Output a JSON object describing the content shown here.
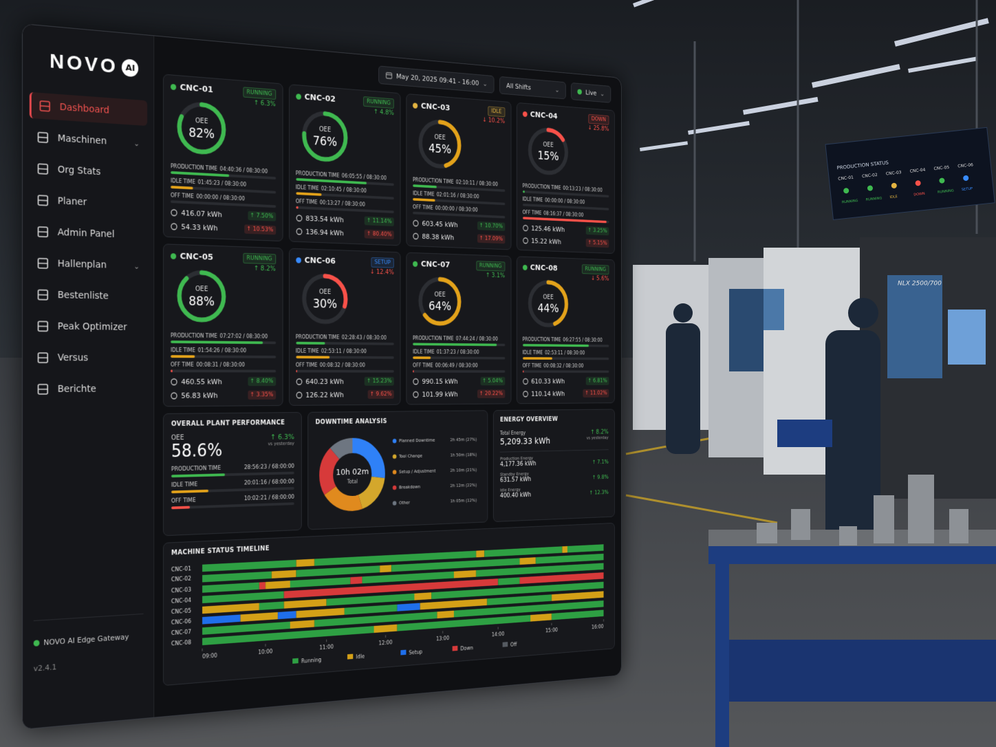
{
  "brand": {
    "name": "NOVO",
    "badge": "AI"
  },
  "nav": [
    {
      "label": "Dashboard",
      "active": true
    },
    {
      "label": "Maschinen",
      "expandable": true
    },
    {
      "label": "Org Stats"
    },
    {
      "label": "Planer"
    },
    {
      "label": "Admin Panel"
    },
    {
      "label": "Hallenplan",
      "expandable": true
    },
    {
      "label": "Bestenliste"
    },
    {
      "label": "Peak Optimizer"
    },
    {
      "label": "Versus"
    },
    {
      "label": "Berichte"
    }
  ],
  "footer": {
    "gateway": "NOVO AI Edge Gateway",
    "version": "v2.4.1"
  },
  "toolbar": {
    "date": "May 20, 2025 09:41 - 16:00",
    "shifts": "All Shifts",
    "live": "Live"
  },
  "status_colors": {
    "RUNNING": "#3fb950",
    "IDLE": "#e3b341",
    "DOWN": "#f85149",
    "SETUP": "#388bfd"
  },
  "oee_label": "OEE",
  "machines": [
    {
      "name": "CNC-01",
      "status": "RUNNING",
      "delta": "↑ 6.3%",
      "oee": {
        "value": 82,
        "label": "82%"
      },
      "rows": [
        {
          "label": "PRODUCTION TIME",
          "value": "04:40:36 / 08:30:00"
        },
        {
          "label": "IDLE TIME",
          "value": "01:45:23 / 08:30:00"
        },
        {
          "label": "OFF TIME",
          "value": "00:00:00 / 08:30:00"
        }
      ],
      "energy": [
        {
          "value": "416.07 kWh",
          "delta": "↑ 7.50%"
        },
        {
          "value": "54.33 kWh",
          "delta": "↑ 10.53%"
        }
      ]
    },
    {
      "name": "CNC-02",
      "status": "RUNNING",
      "delta": "↑ 4.8%",
      "oee": {
        "value": 76,
        "label": "76%"
      },
      "rows": [
        {
          "label": "PRODUCTION TIME",
          "value": "06:05:55 / 08:30:00"
        },
        {
          "label": "IDLE TIME",
          "value": "02:10:45 / 08:30:00"
        },
        {
          "label": "OFF TIME",
          "value": "00:13:27 / 08:30:00"
        }
      ],
      "energy": [
        {
          "value": "833.54 kWh",
          "delta": "↑ 11.14%"
        },
        {
          "value": "136.94 kWh",
          "delta": "↑ 80.40%"
        }
      ]
    },
    {
      "name": "CNC-03",
      "status": "IDLE",
      "delta": "↓ 10.2%",
      "oee": {
        "value": 45,
        "label": "45%"
      },
      "rows": [
        {
          "label": "PRODUCTION TIME",
          "value": "02:10:11 / 08:30:00"
        },
        {
          "label": "IDLE TIME",
          "value": "02:01:16 / 08:30:00"
        },
        {
          "label": "OFF TIME",
          "value": "00:00:00 / 08:30:00"
        }
      ],
      "energy": [
        {
          "value": "603.45 kWh",
          "delta": "↑ 10.70%"
        },
        {
          "value": "88.38 kWh",
          "delta": "↑ 17.09%"
        }
      ]
    },
    {
      "name": "CNC-04",
      "status": "DOWN",
      "delta": "↓ 25.8%",
      "oee": {
        "value": 15,
        "label": "15%"
      },
      "rows": [
        {
          "label": "PRODUCTION TIME",
          "value": "00:13:23 / 08:30:00"
        },
        {
          "label": "IDLE TIME",
          "value": "00:00:00 / 08:30:00"
        },
        {
          "label": "OFF TIME",
          "value": "08:16:37 / 08:30:00"
        }
      ],
      "energy": [
        {
          "value": "125.46 kWh",
          "delta": "↑ 3.25%"
        },
        {
          "value": "15.22 kWh",
          "delta": "↑ 5.15%"
        }
      ]
    },
    {
      "name": "CNC-05",
      "status": "RUNNING",
      "delta": "↑ 8.2%",
      "oee": {
        "value": 88,
        "label": "88%"
      },
      "rows": [
        {
          "label": "PRODUCTION TIME",
          "value": "07:27:02 / 08:30:00"
        },
        {
          "label": "IDLE TIME",
          "value": "01:54:26 / 08:30:00"
        },
        {
          "label": "OFF TIME",
          "value": "00:08:31 / 08:30:00"
        }
      ],
      "energy": [
        {
          "value": "460.55 kWh",
          "delta": "↑ 8.40%"
        },
        {
          "value": "56.83 kWh",
          "delta": "↑ 3.35%"
        }
      ]
    },
    {
      "name": "CNC-06",
      "status": "SETUP",
      "delta": "↓ 12.4%",
      "oee": {
        "value": 30,
        "label": "30%"
      },
      "rows": [
        {
          "label": "PRODUCTION TIME",
          "value": "02:28:43 / 08:30:00"
        },
        {
          "label": "IDLE TIME",
          "value": "02:53:11 / 08:30:00"
        },
        {
          "label": "OFF TIME",
          "value": "00:08:32 / 08:30:00"
        }
      ],
      "energy": [
        {
          "value": "640.23 kWh",
          "delta": "↑ 15.23%"
        },
        {
          "value": "126.22 kWh",
          "delta": "↑ 9.62%"
        }
      ]
    },
    {
      "name": "CNC-07",
      "status": "RUNNING",
      "delta": "↑ 3.1%",
      "oee": {
        "value": 64,
        "label": "64%"
      },
      "rows": [
        {
          "label": "PRODUCTION TIME",
          "value": "07:44:24 / 08:30:00"
        },
        {
          "label": "IDLE TIME",
          "value": "01:37:23 / 08:30:00"
        },
        {
          "label": "OFF TIME",
          "value": "00:06:49 / 08:30:00"
        }
      ],
      "energy": [
        {
          "value": "990.15 kWh",
          "delta": "↑ 5.04%"
        },
        {
          "value": "101.99 kWh",
          "delta": "↑ 20.22%"
        }
      ]
    },
    {
      "name": "CNC-08",
      "status": "RUNNING",
      "delta": "↓ 5.6%",
      "oee": {
        "value": 44,
        "label": "44%"
      },
      "rows": [
        {
          "label": "PRODUCTION TIME",
          "value": "06:27:55 / 08:30:00"
        },
        {
          "label": "IDLE TIME",
          "value": "02:53:11 / 08:30:00"
        },
        {
          "label": "OFF TIME",
          "value": "00:08:32 / 08:30:00"
        }
      ],
      "energy": [
        {
          "value": "610.33 kWh",
          "delta": "↑ 6.81%"
        },
        {
          "value": "110.14 kWh",
          "delta": "↑ 11.02%"
        }
      ]
    }
  ],
  "plant": {
    "title": "OVERALL PLANT PERFORMANCE",
    "oee_label": "OEE",
    "oee": "58.6%",
    "delta": "↑ 6.3%",
    "compare": "vs yesterday",
    "rows": [
      {
        "label": "PRODUCTION TIME",
        "value": "28:56:23 / 68:00:00"
      },
      {
        "label": "IDLE TIME",
        "value": "20:01:16 / 68:00:00"
      },
      {
        "label": "OFF TIME",
        "value": "10:02:21 / 68:00:00"
      }
    ]
  },
  "downtime": {
    "title": "DOWNTIME ANALYSIS",
    "total": "10h 02m",
    "total_label": "Total",
    "items": [
      {
        "name": "Planned Downtime",
        "color": "#2f81f7",
        "share": {
          "value": 27,
          "label": "2h 45m (27%)"
        }
      },
      {
        "name": "Tool Change",
        "color": "#d4a72c",
        "share": {
          "value": 18,
          "label": "1h 50m (18%)"
        }
      },
      {
        "name": "Setup / Adjustment",
        "color": "#e08a1e",
        "share": {
          "value": 21,
          "label": "2h 10m (21%)"
        }
      },
      {
        "name": "Breakdown",
        "color": "#d73a3a",
        "share": {
          "value": 22,
          "label": "2h 12m (22%)"
        }
      },
      {
        "name": "Other",
        "color": "#6e7681",
        "share": {
          "value": 12,
          "label": "1h 05m (12%)"
        }
      }
    ]
  },
  "energy": {
    "title": "ENERGY OVERVIEW",
    "total_label": "Total Energy",
    "total": "5,209.33 kWh",
    "delta": "↑ 8.2%",
    "compare": "vs yesterday",
    "rows": [
      {
        "label": "Production Energy",
        "value": "4,177.36 kWh",
        "delta": "↑ 7.1%"
      },
      {
        "label": "Standby Energy",
        "value": "631.57 kWh",
        "delta": "↑ 9.8%"
      },
      {
        "label": "Idle Energy",
        "value": "400.40 kWh",
        "delta": "↑ 12.3%"
      }
    ]
  },
  "timeline": {
    "title": "MACHINE STATUS TIMELINE",
    "xlim": [
      9,
      16
    ],
    "xticks": [
      {
        "value": 9,
        "label": "09:00"
      },
      {
        "value": 10,
        "label": "10:00"
      },
      {
        "value": 11,
        "label": "11:00"
      },
      {
        "value": 12,
        "label": "12:00"
      },
      {
        "value": 13,
        "label": "13:00"
      },
      {
        "value": 14,
        "label": "14:00"
      },
      {
        "value": 15,
        "label": "15:00"
      },
      {
        "value": 16,
        "label": "16:00"
      }
    ],
    "states": [
      {
        "name": "Running",
        "color": "#2ea043"
      },
      {
        "name": "Idle",
        "color": "#d4a017"
      },
      {
        "name": "Setup",
        "color": "#1f6feb"
      },
      {
        "name": "Down",
        "color": "#d73a3a"
      },
      {
        "name": "Off",
        "color": "#555a61"
      }
    ],
    "rows": [
      {
        "name": "CNC-01",
        "segments": [
          [
            9,
            10.5,
            "Running"
          ],
          [
            10.5,
            10.8,
            "Idle"
          ],
          [
            10.8,
            13.6,
            "Running"
          ],
          [
            13.6,
            13.75,
            "Idle"
          ],
          [
            13.75,
            15.2,
            "Running"
          ],
          [
            15.2,
            15.3,
            "Idle"
          ],
          [
            15.3,
            16,
            "Running"
          ]
        ]
      },
      {
        "name": "CNC-02",
        "segments": [
          [
            9,
            10.1,
            "Running"
          ],
          [
            10.1,
            10.5,
            "Idle"
          ],
          [
            10.5,
            11.9,
            "Running"
          ],
          [
            11.9,
            12.1,
            "Idle"
          ],
          [
            12.1,
            14.4,
            "Running"
          ],
          [
            14.4,
            14.7,
            "Idle"
          ],
          [
            14.7,
            16,
            "Running"
          ]
        ]
      },
      {
        "name": "CNC-03",
        "segments": [
          [
            9,
            9.9,
            "Running"
          ],
          [
            9.9,
            10,
            "Down"
          ],
          [
            10,
            10.4,
            "Idle"
          ],
          [
            10.4,
            11.4,
            "Running"
          ],
          [
            11.4,
            11.6,
            "Down"
          ],
          [
            11.6,
            13.2,
            "Running"
          ],
          [
            13.2,
            13.6,
            "Idle"
          ],
          [
            13.6,
            16,
            "Running"
          ]
        ]
      },
      {
        "name": "CNC-04",
        "segments": [
          [
            9,
            10.3,
            "Running"
          ],
          [
            10.3,
            14,
            "Down"
          ],
          [
            14,
            14.4,
            "Running"
          ],
          [
            14.4,
            16,
            "Down"
          ]
        ]
      },
      {
        "name": "CNC-05",
        "segments": [
          [
            9,
            9.9,
            "Idle"
          ],
          [
            9.9,
            10.3,
            "Running"
          ],
          [
            10.3,
            11,
            "Idle"
          ],
          [
            11,
            12.5,
            "Running"
          ],
          [
            12.5,
            12.8,
            "Idle"
          ],
          [
            12.8,
            16,
            "Running"
          ]
        ]
      },
      {
        "name": "CNC-06",
        "segments": [
          [
            9,
            9.6,
            "Setup"
          ],
          [
            9.6,
            10.2,
            "Idle"
          ],
          [
            10.2,
            10.5,
            "Setup"
          ],
          [
            10.5,
            11.3,
            "Idle"
          ],
          [
            11.3,
            12.2,
            "Running"
          ],
          [
            12.2,
            12.6,
            "Setup"
          ],
          [
            12.6,
            13.8,
            "Idle"
          ],
          [
            13.8,
            15,
            "Running"
          ],
          [
            15,
            16,
            "Idle"
          ]
        ]
      },
      {
        "name": "CNC-07",
        "segments": [
          [
            9,
            10.4,
            "Running"
          ],
          [
            10.4,
            10.8,
            "Idle"
          ],
          [
            10.8,
            12.9,
            "Running"
          ],
          [
            12.9,
            13.2,
            "Idle"
          ],
          [
            13.2,
            16,
            "Running"
          ]
        ]
      },
      {
        "name": "CNC-08",
        "segments": [
          [
            9,
            11.8,
            "Running"
          ],
          [
            11.8,
            12.2,
            "Idle"
          ],
          [
            12.2,
            14.6,
            "Running"
          ],
          [
            14.6,
            15,
            "Idle"
          ],
          [
            15,
            16,
            "Running"
          ]
        ]
      }
    ]
  },
  "background": {
    "display_title": "PRODUCTION STATUS",
    "machine_label": "NLX 2500/700",
    "display_machines": [
      {
        "name": "CNC-01",
        "status": "RUNNING"
      },
      {
        "name": "CNC-02",
        "status": "RUNNING"
      },
      {
        "name": "CNC-03",
        "status": "IDLE"
      },
      {
        "name": "CNC-04",
        "status": "DOWN"
      },
      {
        "name": "CNC-05",
        "status": "RUNNING"
      },
      {
        "name": "CNC-06",
        "status": "SETUP"
      }
    ]
  }
}
